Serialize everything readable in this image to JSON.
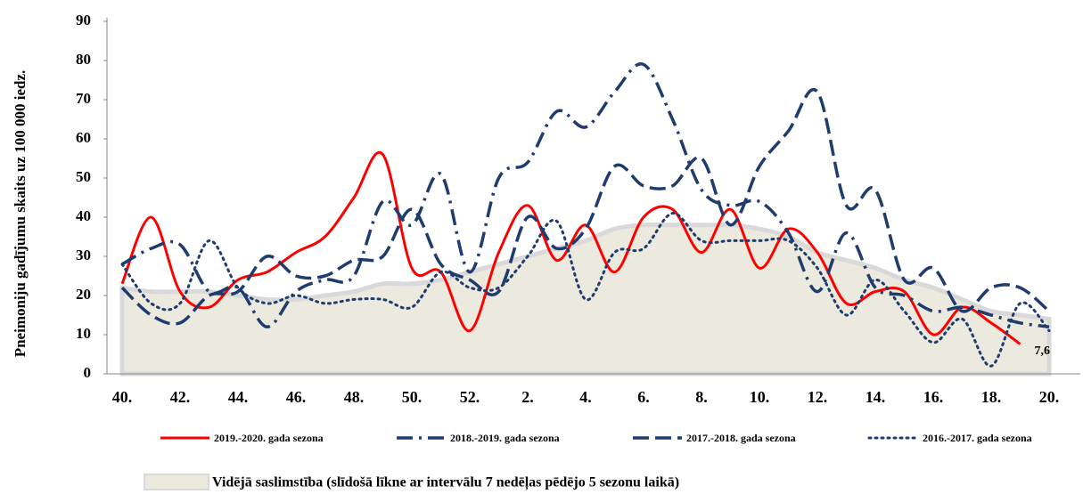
{
  "chart_data": {
    "type": "line",
    "y_label": "Pneimoniju gadījumu skaits uz 100 000 iedz.",
    "categories": [
      "40.",
      null,
      "42.",
      null,
      "44.",
      null,
      "46.",
      null,
      "48.",
      null,
      "50.",
      null,
      "52.",
      null,
      "2.",
      null,
      "4.",
      null,
      "6.",
      null,
      "8.",
      null,
      "10.",
      null,
      "12.",
      null,
      "14.",
      null,
      "16.",
      null,
      "18.",
      null,
      "20."
    ],
    "ylim": [
      0,
      90
    ],
    "yticks": [
      0,
      10,
      20,
      30,
      40,
      50,
      60,
      70,
      80,
      90
    ],
    "series": [
      {
        "name": "2019.-2020. gada sezona",
        "color": "#ff0000",
        "dash": "solid",
        "values": [
          23,
          40,
          21,
          17,
          24,
          26,
          31,
          35,
          45,
          56,
          27,
          26,
          11,
          31,
          43,
          29,
          38,
          26,
          40,
          42,
          31,
          42,
          27,
          37,
          31,
          18,
          21,
          21,
          10,
          17,
          13,
          7.6,
          null
        ],
        "value_labels": [
          null,
          null,
          null,
          null,
          null,
          null,
          null,
          null,
          null,
          null,
          null,
          null,
          null,
          null,
          null,
          null,
          null,
          null,
          null,
          null,
          null,
          null,
          null,
          null,
          null,
          null,
          null,
          null,
          null,
          null,
          null,
          "7,6",
          null
        ]
      },
      {
        "name": "2018.-2019. gada sezona",
        "color": "#1f3c6e",
        "dash": "dashdot",
        "values": [
          28,
          32,
          33,
          21,
          22,
          12,
          21,
          24,
          25,
          44,
          38,
          51,
          26,
          50,
          54,
          67,
          63,
          72,
          79,
          65,
          47,
          43,
          44,
          36,
          21,
          36,
          22,
          20,
          16,
          17,
          15,
          13,
          12
        ]
      },
      {
        "name": "2017.-2018. gada sezona",
        "color": "#1f3c6e",
        "dash": "dashed",
        "values": [
          22,
          15,
          13,
          20,
          21,
          30,
          25,
          25,
          29,
          30,
          42,
          28,
          24,
          21,
          40,
          32,
          37,
          53,
          48,
          48,
          55,
          38,
          53,
          62,
          72,
          43,
          47,
          24,
          27,
          16,
          22,
          22,
          16
        ]
      },
      {
        "name": "2016.-2017. gada sezona",
        "color": "#1f3c6e",
        "dash": "dotted",
        "values": [
          28,
          18,
          18,
          34,
          22,
          18,
          20,
          18,
          19,
          19,
          17,
          26,
          22,
          22,
          30,
          39,
          19,
          31,
          32,
          41,
          34,
          34,
          34,
          34,
          27,
          15,
          24,
          16,
          8,
          14,
          2,
          18,
          11
        ]
      },
      {
        "name": "Vidējā saslimstība (slīdošā līkne ar intervālu 7 nedēļas pēdējo 5 sezonu laikā)",
        "color": "#ece9df",
        "dash": "area",
        "values": [
          22,
          21,
          21,
          21,
          20,
          19,
          19,
          20,
          21,
          23,
          23,
          24,
          26,
          28,
          30,
          32,
          34,
          37,
          38,
          38,
          38,
          38,
          37,
          35,
          31,
          29,
          27,
          24,
          22,
          19,
          16,
          15,
          14
        ]
      }
    ]
  }
}
